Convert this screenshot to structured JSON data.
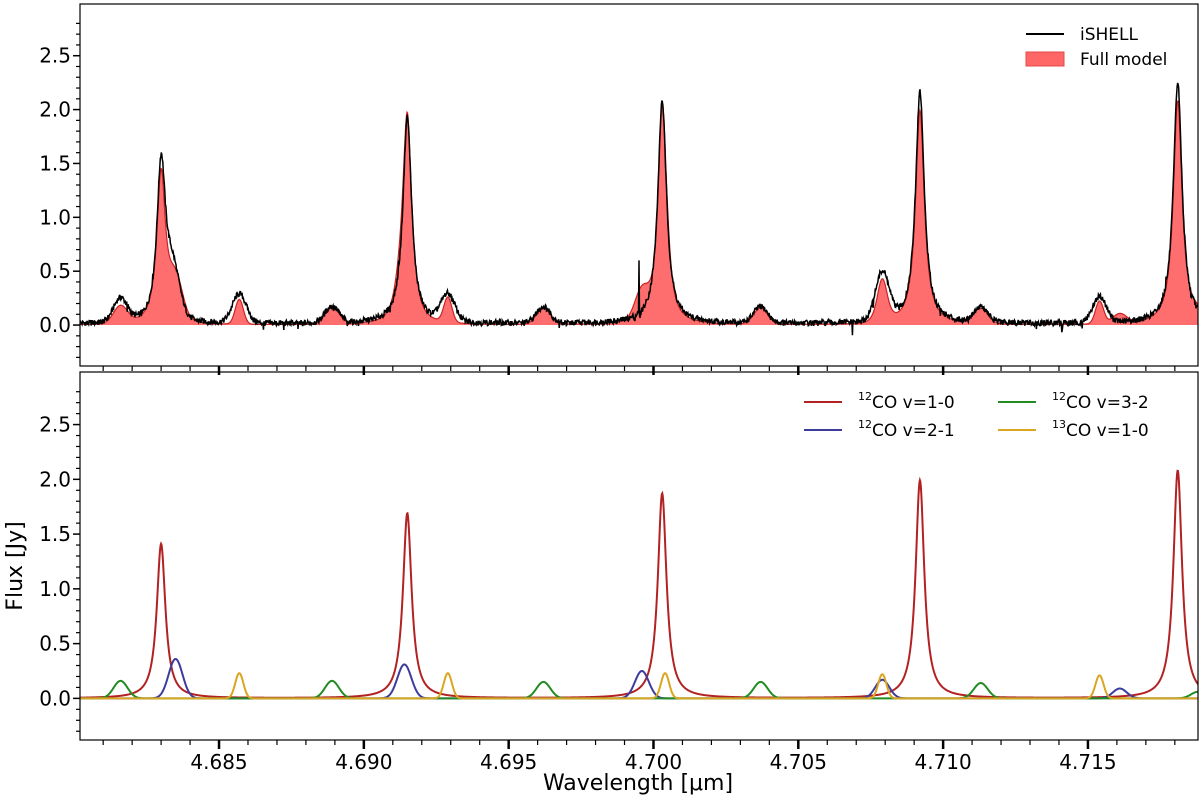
{
  "chart_data": [
    {
      "type": "line",
      "panel": "top",
      "xlabel": "",
      "ylabel": "",
      "xlim": [
        4.6802,
        4.7188
      ],
      "ylim": [
        -0.38,
        2.98
      ],
      "yticks": [
        0.0,
        0.5,
        1.0,
        1.5,
        2.0,
        2.5
      ],
      "ytick_labels": [
        "0.0",
        "0.5",
        "1.0",
        "1.5",
        "2.0",
        "2.5"
      ],
      "legend_position": "top-right",
      "series": [
        {
          "name": "iSHELL",
          "color": "#000000",
          "style": "line",
          "lines_description_x": [
            4.6816,
            4.683,
            4.6834,
            4.6857,
            4.6889,
            4.6915,
            4.6929,
            4.6962,
            4.7003,
            4.7037,
            4.7079,
            4.7092,
            4.7113,
            4.7154,
            4.7181
          ],
          "line_peaks": [
            0.22,
            1.48,
            0.42,
            0.27,
            0.15,
            1.92,
            0.25,
            0.15,
            2.07,
            0.15,
            0.45,
            2.16,
            0.14,
            0.24,
            2.24
          ],
          "spikes": [
            {
              "x": 4.6912,
              "y": 0.58
            },
            {
              "x": 4.6995,
              "y": 0.6
            },
            {
              "x": 4.7177,
              "y": 0.45
            }
          ]
        },
        {
          "name": "Full model",
          "color": "#ff6666",
          "style": "fill"
        }
      ]
    },
    {
      "type": "line",
      "panel": "bottom",
      "xlabel": "Wavelength [μm]",
      "ylabel": "Flux [Jy]",
      "xlim": [
        4.6802,
        4.7188
      ],
      "ylim": [
        -0.38,
        2.98
      ],
      "xticks": [
        4.685,
        4.69,
        4.695,
        4.7,
        4.705,
        4.71,
        4.715
      ],
      "xtick_labels": [
        "4.685",
        "4.690",
        "4.695",
        "4.700",
        "4.705",
        "4.710",
        "4.715"
      ],
      "yticks": [
        0.0,
        0.5,
        1.0,
        1.5,
        2.0,
        2.5
      ],
      "ytick_labels": [
        "0.0",
        "0.5",
        "1.0",
        "1.5",
        "2.0",
        "2.5"
      ],
      "legend_position": "top-right",
      "series": [
        {
          "name_sup": "12",
          "name": "CO v=1-0",
          "color": "#b22222",
          "x": [
            4.683,
            4.6915,
            4.7003,
            4.7092,
            4.7181
          ],
          "y": [
            1.41,
            1.69,
            1.87,
            1.99,
            2.08
          ]
        },
        {
          "name_sup": "12",
          "name": "CO v=2-1",
          "color": "#3c3c9c",
          "x": [
            4.6835,
            4.6914,
            4.6996,
            4.7079,
            4.7161
          ],
          "y": [
            0.36,
            0.31,
            0.25,
            0.17,
            0.09
          ]
        },
        {
          "name_sup": "12",
          "name": "CO v=3-2",
          "color": "#228b22",
          "x": [
            4.6816,
            4.6889,
            4.6962,
            4.7037,
            4.7113,
            4.7188
          ],
          "y": [
            0.16,
            0.16,
            0.15,
            0.15,
            0.14,
            0.06
          ]
        },
        {
          "name_sup": "13",
          "name": "CO v=1-0",
          "color": "#daa520",
          "x": [
            4.6857,
            4.6929,
            4.7004,
            4.7079,
            4.7154
          ],
          "y": [
            0.23,
            0.23,
            0.23,
            0.22,
            0.21
          ]
        }
      ]
    }
  ]
}
